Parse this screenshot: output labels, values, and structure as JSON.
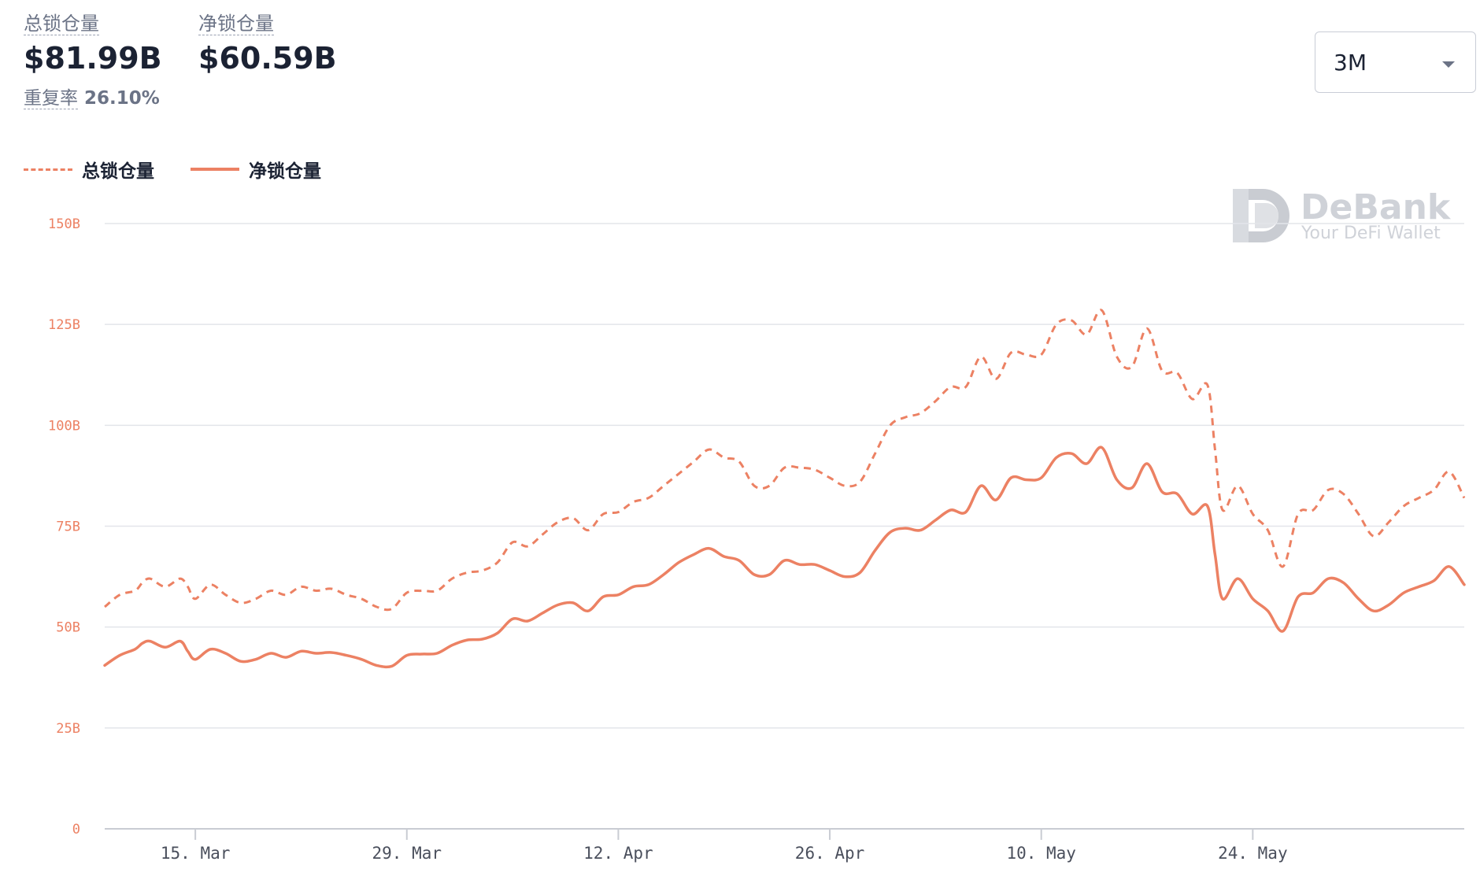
{
  "header": {
    "tvl_label": "总锁仓量",
    "tvl_value": "$81.99B",
    "net_label": "净锁仓量",
    "net_value": "$60.59B",
    "rate_label": "重复率",
    "rate_value": "26.10%"
  },
  "range_selector": {
    "selected": "3M"
  },
  "watermark": {
    "name": "DeBank",
    "tagline": "Your DeFi Wallet"
  },
  "colors": {
    "series": "#ec8163",
    "grid": "#e3e5ea",
    "axis": "#c9ccd3"
  },
  "chart_data": {
    "type": "line",
    "title": "",
    "xlabel": "",
    "ylabel": "",
    "ylim": [
      0,
      150
    ],
    "unit": "B",
    "grid": true,
    "legend_position": "top-left",
    "y_ticks": [
      "0",
      "25B",
      "50B",
      "75B",
      "100B",
      "125B",
      "150B"
    ],
    "x_tick_labels": [
      "15. Mar",
      "29. Mar",
      "12. Apr",
      "26. Apr",
      "10. May",
      "24. May"
    ],
    "x_tick_days": [
      6,
      20,
      34,
      48,
      62,
      76
    ],
    "x_range_days": [
      0,
      90
    ],
    "series": [
      {
        "name": "总锁仓量",
        "style": "dashed",
        "points": [
          [
            0,
            55
          ],
          [
            1,
            58
          ],
          [
            2,
            59
          ],
          [
            2.5,
            61
          ],
          [
            3,
            62
          ],
          [
            4,
            60
          ],
          [
            5,
            62
          ],
          [
            5.5,
            60
          ],
          [
            6,
            57
          ],
          [
            7,
            60.5
          ],
          [
            8,
            58
          ],
          [
            9,
            56
          ],
          [
            10,
            57
          ],
          [
            11,
            59
          ],
          [
            12,
            58
          ],
          [
            13,
            60
          ],
          [
            14,
            59
          ],
          [
            15,
            59.5
          ],
          [
            16,
            58
          ],
          [
            17,
            57
          ],
          [
            18,
            55
          ],
          [
            19,
            54.5
          ],
          [
            20,
            58.5
          ],
          [
            21,
            59
          ],
          [
            22,
            59
          ],
          [
            23,
            62
          ],
          [
            24,
            63.5
          ],
          [
            25,
            64
          ],
          [
            26,
            66
          ],
          [
            27,
            71
          ],
          [
            28,
            70
          ],
          [
            29,
            73
          ],
          [
            30,
            76
          ],
          [
            31,
            77
          ],
          [
            32,
            74
          ],
          [
            33,
            78
          ],
          [
            34,
            78.5
          ],
          [
            35,
            81
          ],
          [
            36,
            82
          ],
          [
            37,
            85
          ],
          [
            38,
            88
          ],
          [
            39,
            91
          ],
          [
            40,
            94
          ],
          [
            41,
            92
          ],
          [
            42,
            91
          ],
          [
            43,
            85
          ],
          [
            44,
            85
          ],
          [
            45,
            89.5
          ],
          [
            46,
            89.5
          ],
          [
            47,
            89
          ],
          [
            48,
            87
          ],
          [
            49,
            85
          ],
          [
            50,
            86
          ],
          [
            51,
            93
          ],
          [
            52,
            100
          ],
          [
            53,
            102
          ],
          [
            54,
            103
          ],
          [
            55,
            106
          ],
          [
            56,
            109.5
          ],
          [
            57,
            109.5
          ],
          [
            58,
            117
          ],
          [
            59,
            111.5
          ],
          [
            60,
            118
          ],
          [
            61,
            117.5
          ],
          [
            62,
            117.5
          ],
          [
            63,
            125
          ],
          [
            64,
            126
          ],
          [
            65,
            122.5
          ],
          [
            66,
            128.5
          ],
          [
            67,
            117
          ],
          [
            68,
            114.5
          ],
          [
            69,
            124
          ],
          [
            70,
            113.5
          ],
          [
            71,
            113
          ],
          [
            72,
            106.5
          ],
          [
            73,
            110
          ],
          [
            73.5,
            94
          ],
          [
            74,
            79
          ],
          [
            75,
            85
          ],
          [
            76,
            78
          ],
          [
            77,
            74
          ],
          [
            78,
            65
          ],
          [
            79,
            78
          ],
          [
            80,
            79
          ],
          [
            81,
            84
          ],
          [
            82,
            83
          ],
          [
            83,
            78
          ],
          [
            84,
            72.5
          ],
          [
            85,
            76
          ],
          [
            86,
            80
          ],
          [
            87,
            82
          ],
          [
            88,
            84
          ],
          [
            89,
            88.5
          ],
          [
            90,
            82
          ]
        ]
      },
      {
        "name": "净锁仓量",
        "style": "solid",
        "points": [
          [
            0,
            40.5
          ],
          [
            1,
            43
          ],
          [
            2,
            44.5
          ],
          [
            2.5,
            46
          ],
          [
            3,
            46.5
          ],
          [
            4,
            45
          ],
          [
            5,
            46.5
          ],
          [
            5.5,
            44
          ],
          [
            6,
            42
          ],
          [
            7,
            44.5
          ],
          [
            8,
            43.5
          ],
          [
            9,
            41.5
          ],
          [
            10,
            42
          ],
          [
            11,
            43.5
          ],
          [
            12,
            42.5
          ],
          [
            13,
            44
          ],
          [
            14,
            43.5
          ],
          [
            15,
            43.7
          ],
          [
            16,
            43
          ],
          [
            17,
            42
          ],
          [
            18,
            40.5
          ],
          [
            19,
            40.3
          ],
          [
            20,
            43
          ],
          [
            21,
            43.3
          ],
          [
            22,
            43.5
          ],
          [
            23,
            45.5
          ],
          [
            24,
            46.8
          ],
          [
            25,
            47
          ],
          [
            26,
            48.5
          ],
          [
            27,
            52
          ],
          [
            28,
            51.5
          ],
          [
            29,
            53.5
          ],
          [
            30,
            55.5
          ],
          [
            31,
            56
          ],
          [
            32,
            54
          ],
          [
            33,
            57.5
          ],
          [
            34,
            58
          ],
          [
            35,
            60
          ],
          [
            36,
            60.5
          ],
          [
            37,
            63
          ],
          [
            38,
            66
          ],
          [
            39,
            68
          ],
          [
            40,
            69.5
          ],
          [
            41,
            67.5
          ],
          [
            42,
            66.5
          ],
          [
            43,
            63
          ],
          [
            44,
            63
          ],
          [
            45,
            66.5
          ],
          [
            46,
            65.5
          ],
          [
            47,
            65.5
          ],
          [
            48,
            64
          ],
          [
            49,
            62.5
          ],
          [
            50,
            63.5
          ],
          [
            51,
            69
          ],
          [
            52,
            73.5
          ],
          [
            53,
            74.5
          ],
          [
            54,
            74
          ],
          [
            55,
            76.5
          ],
          [
            56,
            79
          ],
          [
            57,
            78.5
          ],
          [
            58,
            85
          ],
          [
            59,
            81.5
          ],
          [
            60,
            87
          ],
          [
            61,
            86.5
          ],
          [
            62,
            87
          ],
          [
            63,
            92
          ],
          [
            64,
            93
          ],
          [
            65,
            90.5
          ],
          [
            66,
            94.5
          ],
          [
            67,
            86.5
          ],
          [
            68,
            84.5
          ],
          [
            69,
            90.5
          ],
          [
            70,
            83.5
          ],
          [
            71,
            83
          ],
          [
            72,
            78
          ],
          [
            73,
            80
          ],
          [
            73.5,
            68
          ],
          [
            74,
            57
          ],
          [
            75,
            62
          ],
          [
            76,
            57
          ],
          [
            77,
            54
          ],
          [
            78,
            49
          ],
          [
            79,
            57.5
          ],
          [
            80,
            58.5
          ],
          [
            81,
            62
          ],
          [
            82,
            61
          ],
          [
            83,
            57
          ],
          [
            84,
            54
          ],
          [
            85,
            55.5
          ],
          [
            86,
            58.5
          ],
          [
            87,
            60
          ],
          [
            88,
            61.5
          ],
          [
            89,
            65
          ],
          [
            90,
            60.5
          ]
        ]
      }
    ]
  }
}
